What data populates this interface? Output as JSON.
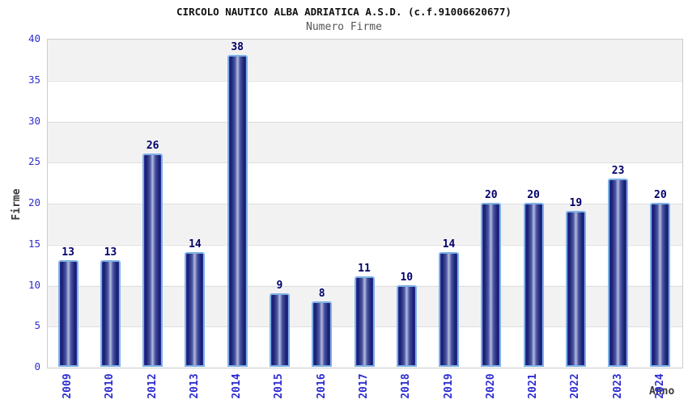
{
  "chart_data": {
    "type": "bar",
    "title": "CIRCOLO NAUTICO ALBA ADRIATICA A.S.D. (c.f.91006620677)",
    "subtitle": "Numero Firme",
    "xlabel": "Anno",
    "ylabel": "Firme",
    "categories": [
      "2009",
      "2010",
      "2012",
      "2013",
      "2014",
      "2015",
      "2016",
      "2017",
      "2018",
      "2019",
      "2020",
      "2021",
      "2022",
      "2023",
      "2024"
    ],
    "values": [
      13,
      13,
      26,
      14,
      38,
      9,
      8,
      11,
      10,
      14,
      20,
      20,
      19,
      23,
      20
    ],
    "ylim": [
      0,
      40
    ],
    "yticks": [
      0,
      5,
      10,
      15,
      20,
      25,
      30,
      35,
      40
    ],
    "grid": true,
    "legend": "none",
    "bands_alternating": true,
    "colors": {
      "bar_edge_dark": "#171c6f",
      "bar_edge_mid": "#2b339e",
      "bar_body_mid": "#4a55a2",
      "bar_highlight": "#b4bcde",
      "bar_border": "#7fb2e6",
      "value_label": "#00006b",
      "tick_label": "#2d2dd2",
      "band_gray": "#f2f2f2",
      "band_white": "#ffffff",
      "grid_line": "#dedede",
      "plot_border": "#cccccc",
      "title_color": "#111111",
      "subtitle_color": "#555555",
      "axis_title_color": "#3a3a3a"
    }
  }
}
